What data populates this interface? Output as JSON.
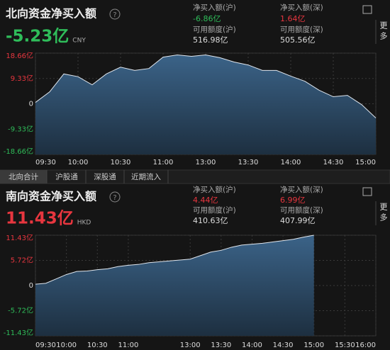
{
  "north": {
    "title": "北向资金净买入额",
    "value": "-5.23亿",
    "currency": "CNY",
    "more": "更多",
    "stats": [
      {
        "label": "净买入额(沪)",
        "value": "-6.86亿"
      },
      {
        "label": "净买入额(深)",
        "value": "1.64亿"
      },
      {
        "label": "可用额度(沪)",
        "value": "516.98亿"
      },
      {
        "label": "可用额度(深)",
        "value": "505.56亿"
      }
    ]
  },
  "tabs": [
    "北向合计",
    "沪股通",
    "深股通",
    "近期流入"
  ],
  "south": {
    "title": "南向资金净买入额",
    "value": "11.43亿",
    "currency": "HKD",
    "more": "更多",
    "stats": [
      {
        "label": "净买入额(沪)",
        "value": "4.44亿"
      },
      {
        "label": "净买入额(深)",
        "value": "6.99亿"
      },
      {
        "label": "可用额度(沪)",
        "value": "410.63亿"
      },
      {
        "label": "可用额度(深)",
        "value": "407.99亿"
      }
    ]
  },
  "chart_data": [
    {
      "type": "area",
      "color": "#2d4d6b",
      "x": [
        "09:30",
        "09:40",
        "09:50",
        "10:00",
        "10:10",
        "10:20",
        "10:30",
        "10:40",
        "10:50",
        "11:00",
        "11:10",
        "11:20",
        "13:00",
        "13:10",
        "13:20",
        "13:30",
        "13:40",
        "13:50",
        "14:00",
        "14:10",
        "14:20",
        "14:30",
        "14:40",
        "14:50",
        "15:00"
      ],
      "values": [
        0.5,
        4.4,
        11,
        10,
        7,
        11,
        13.5,
        12.3,
        13,
        17.2,
        18,
        17.5,
        18,
        17,
        15.4,
        14.3,
        12.3,
        12.3,
        10.2,
        8.3,
        5,
        2.6,
        3.1,
        -0.3,
        -5.23
      ],
      "ylim": [
        -18.66,
        18.66
      ],
      "yticks": [
        {
          "value": -18.66,
          "label": "-18.66亿"
        },
        {
          "value": -9.33,
          "label": "-9.33亿"
        },
        0,
        {
          "value": 9.33,
          "label": "9.33亿"
        },
        {
          "value": 18.66,
          "label": "18.66亿"
        }
      ],
      "xticks": [
        "09:30",
        "10:00",
        "10:30",
        "11:00",
        "13:00",
        "13:30",
        "14:00",
        "14:30",
        "15:00"
      ]
    },
    {
      "type": "area",
      "color": "#2d4d6b",
      "x": [
        "09:30",
        "09:40",
        "09:50",
        "10:00",
        "10:10",
        "10:20",
        "10:30",
        "10:40",
        "10:50",
        "11:00",
        "11:10",
        "11:20",
        "11:30",
        "11:40",
        "11:50",
        "13:00",
        "13:10",
        "13:20",
        "13:30",
        "13:40",
        "13:50",
        "14:00",
        "14:10",
        "14:20",
        "14:30",
        "14:40",
        "14:50",
        "15:00",
        "15:10",
        "15:20",
        "15:30",
        "15:40",
        "15:50",
        "16:00"
      ],
      "values": [
        0.3,
        0.5,
        1.5,
        2.5,
        3.2,
        3.3,
        3.6,
        3.8,
        4.3,
        4.6,
        4.8,
        5.2,
        5.4,
        5.6,
        5.8,
        6.0,
        6.8,
        7.6,
        8.0,
        8.7,
        9.2,
        9.4,
        9.6,
        9.9,
        10.2,
        10.5,
        11.0,
        11.43,
        null,
        null,
        null,
        null,
        null,
        null
      ],
      "ylim": [
        -11.43,
        11.43
      ],
      "yticks": [
        {
          "value": -11.43,
          "label": "-11.43亿"
        },
        {
          "value": -5.72,
          "label": "-5.72亿"
        },
        0,
        {
          "value": 5.72,
          "label": "5.72亿"
        },
        {
          "value": 11.43,
          "label": "11.43亿"
        }
      ],
      "xticks": [
        "09:30",
        "10:00",
        "10:30",
        "11:00",
        "13:00",
        "13:30",
        "14:00",
        "14:30",
        "15:00",
        "15:30",
        "16:00"
      ]
    }
  ]
}
